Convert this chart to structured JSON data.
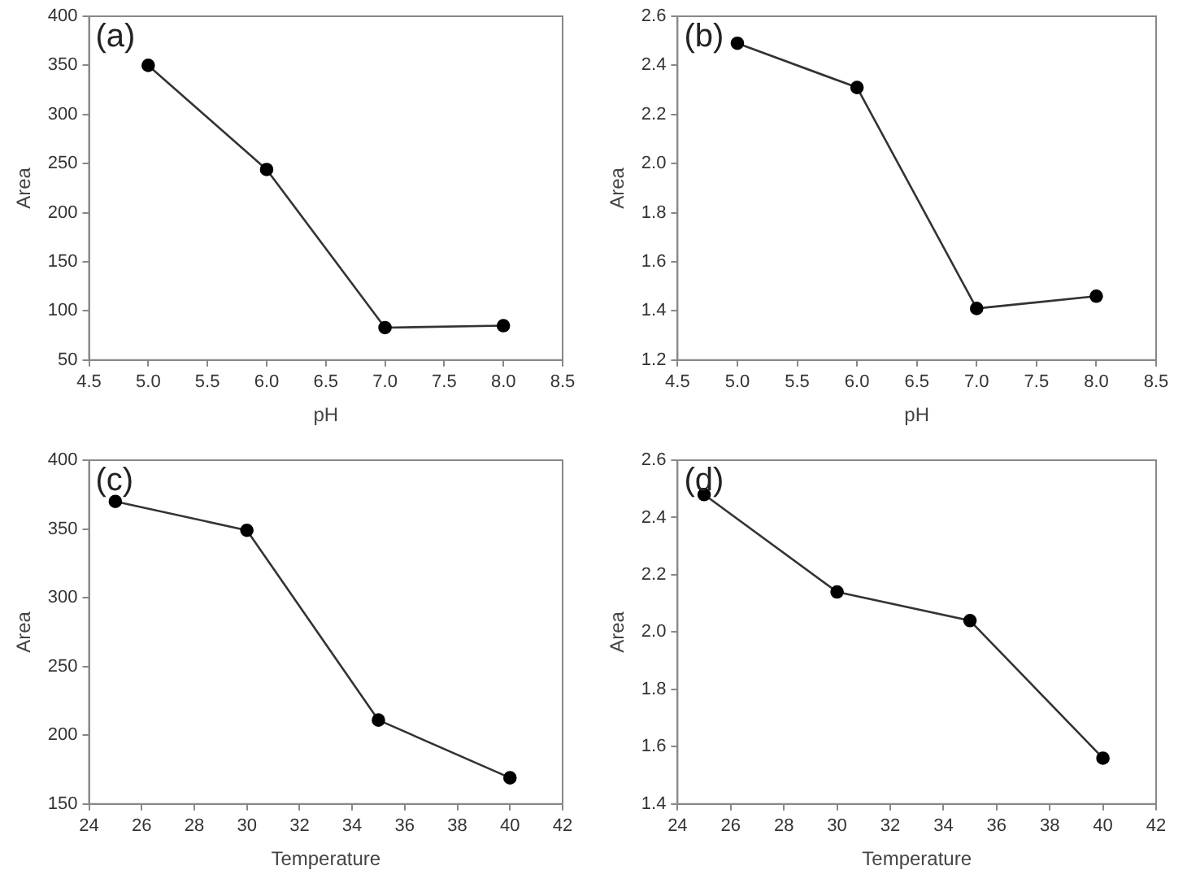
{
  "chart_data": [
    {
      "type": "line",
      "annotations": [
        "(a)"
      ],
      "xlabel": "pH",
      "ylabel": "Area",
      "x": [
        5,
        6,
        7,
        8
      ],
      "values": [
        350,
        244,
        83,
        85
      ],
      "color": "#333333",
      "marker": "circle",
      "xlim": [
        4.5,
        8.5
      ],
      "xticks": [
        4.5,
        {
          "value": 5,
          "label": "5.0"
        },
        5.5,
        {
          "value": 6,
          "label": "6.0"
        },
        6.5,
        {
          "value": 7,
          "label": "7.0"
        },
        7.5,
        {
          "value": 8,
          "label": "8.0"
        },
        8.5
      ],
      "ylim": [
        50,
        400
      ],
      "yticks": [
        50,
        100,
        150,
        200,
        250,
        300,
        350,
        400
      ]
    },
    {
      "type": "line",
      "annotations": [
        "(b)"
      ],
      "xlabel": "pH",
      "ylabel": "Area",
      "x": [
        5,
        6,
        7,
        8
      ],
      "values": [
        2.49,
        2.31,
        1.41,
        1.46
      ],
      "color": "#333333",
      "marker": "circle",
      "xlim": [
        4.5,
        8.5
      ],
      "xticks": [
        4.5,
        {
          "value": 5,
          "label": "5.0"
        },
        5.5,
        {
          "value": 6,
          "label": "6.0"
        },
        6.5,
        {
          "value": 7,
          "label": "7.0"
        },
        7.5,
        {
          "value": 8,
          "label": "8.0"
        },
        8.5
      ],
      "ylim": [
        1.2,
        2.6
      ],
      "yticks": [
        1.2,
        1.4,
        1.6,
        1.8,
        {
          "value": 2,
          "label": "2.0"
        },
        2.2,
        2.4,
        2.6
      ]
    },
    {
      "type": "line",
      "annotations": [
        "(c)"
      ],
      "xlabel": "Temperature",
      "ylabel": "Area",
      "x": [
        25,
        30,
        35,
        40
      ],
      "values": [
        370,
        349,
        211,
        169
      ],
      "color": "#333333",
      "marker": "circle",
      "xlim": [
        24,
        42
      ],
      "xticks": [
        24,
        26,
        28,
        30,
        32,
        34,
        36,
        38,
        40,
        42
      ],
      "ylim": [
        150,
        400
      ],
      "yticks": [
        150,
        200,
        250,
        300,
        350,
        400
      ]
    },
    {
      "type": "line",
      "annotations": [
        "(d)"
      ],
      "xlabel": "Temperature",
      "ylabel": "Area",
      "x": [
        25,
        30,
        35,
        40
      ],
      "values": [
        2.48,
        2.14,
        2.04,
        1.56
      ],
      "color": "#333333",
      "marker": "circle",
      "xlim": [
        24,
        42
      ],
      "xticks": [
        24,
        26,
        28,
        30,
        32,
        34,
        36,
        38,
        40,
        42
      ],
      "ylim": [
        1.4,
        2.6
      ],
      "yticks": [
        1.4,
        1.6,
        1.8,
        {
          "value": 2,
          "label": "2.0"
        },
        2.2,
        2.4,
        2.6
      ]
    }
  ]
}
